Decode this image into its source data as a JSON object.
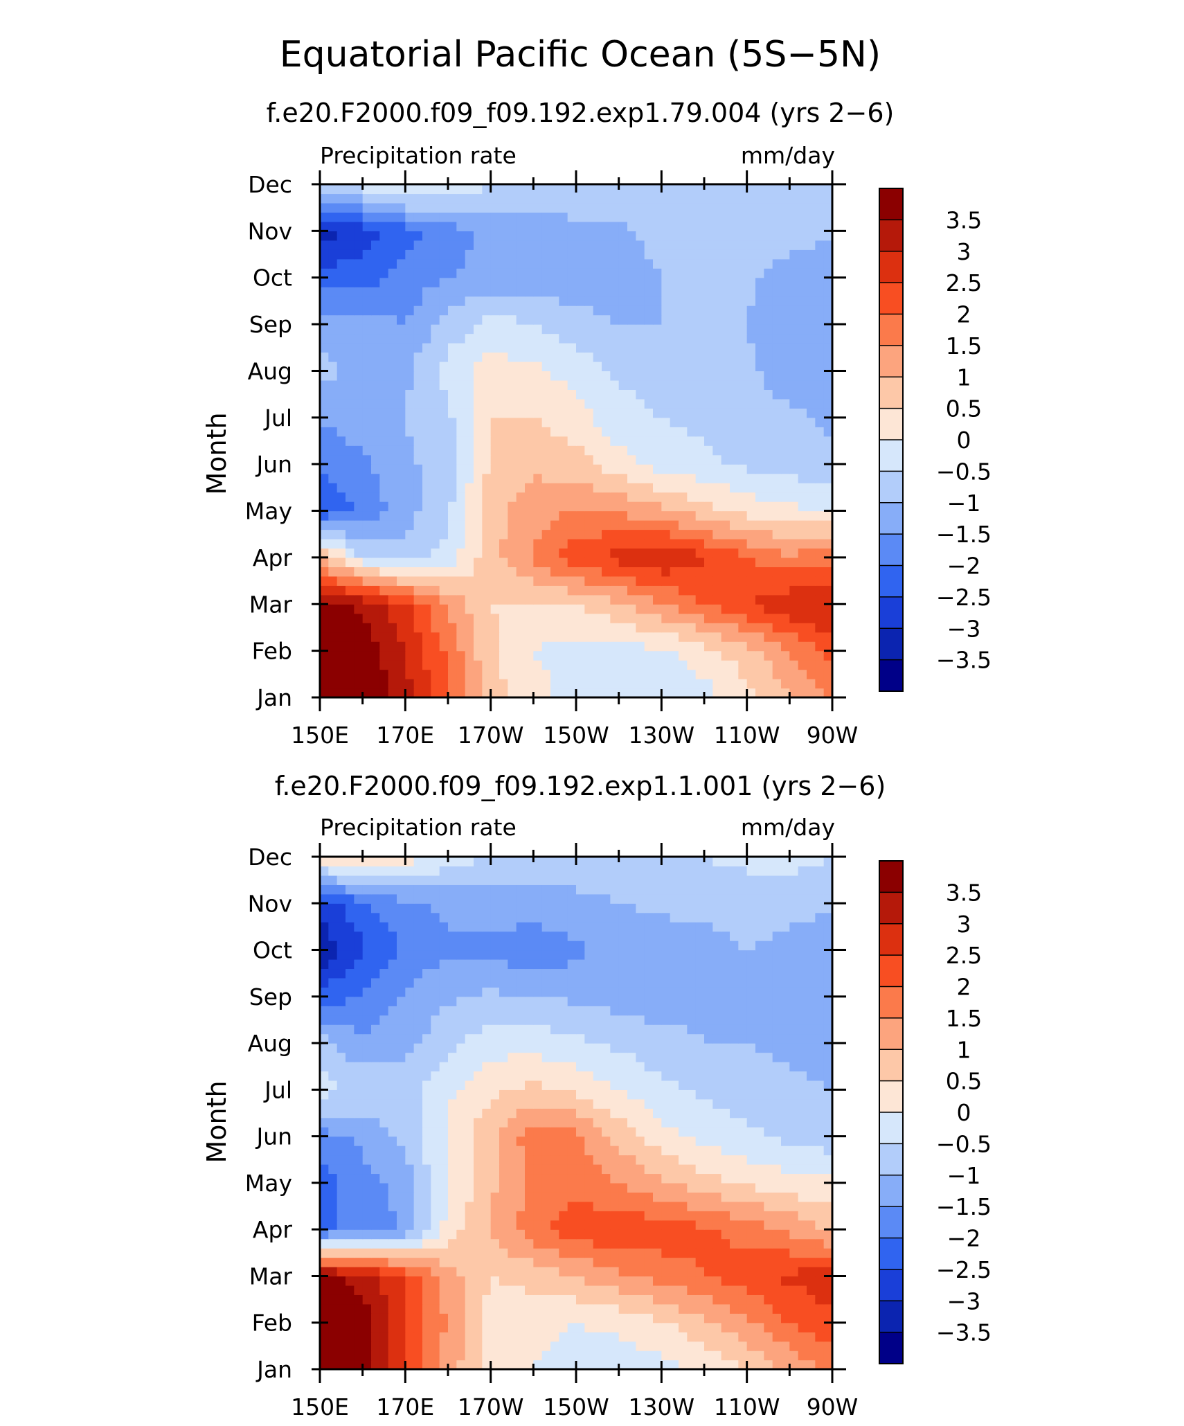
{
  "title": "Equatorial Pacific Ocean (5S−5N)",
  "chart_data": [
    {
      "type": "heatmap",
      "subtitle": "f.e20.F2000.f09_f09.192.exp1.79.004 (yrs 2−6)",
      "left_label": "Precipitation rate",
      "right_label": "mm/day",
      "ylabel": "Month",
      "x_ticks": [
        "150E",
        "170E",
        "170W",
        "150W",
        "130W",
        "110W",
        "90W"
      ],
      "y_ticks": [
        "Jan",
        "Feb",
        "Mar",
        "Apr",
        "May",
        "Jun",
        "Jul",
        "Aug",
        "Sep",
        "Oct",
        "Nov",
        "Dec"
      ],
      "xlim": [
        150,
        270
      ],
      "x_values": [
        150,
        160,
        170,
        180,
        190,
        200,
        210,
        220,
        230,
        240,
        250,
        260,
        270
      ],
      "z": [
        [
          4.0,
          4.0,
          3.2,
          2.0,
          0.7,
          0.2,
          -0.2,
          -0.3,
          -0.3,
          -0.2,
          0.3,
          0.9,
          1.6
        ],
        [
          4.0,
          3.8,
          3.0,
          1.9,
          0.6,
          0.0,
          -0.2,
          -0.2,
          -0.1,
          0.3,
          0.8,
          1.5,
          2.2
        ],
        [
          3.6,
          3.4,
          2.6,
          1.4,
          0.5,
          0.4,
          0.5,
          0.9,
          1.4,
          2.0,
          2.5,
          2.9,
          3.1
        ],
        [
          1.0,
          -0.5,
          -0.8,
          -0.3,
          0.8,
          1.6,
          2.3,
          2.7,
          3.0,
          2.6,
          2.0,
          1.6,
          1.8
        ],
        [
          -2.4,
          -1.9,
          -1.2,
          -0.6,
          0.8,
          1.3,
          1.5,
          1.4,
          1.1,
          0.7,
          0.3,
          0.1,
          0.0
        ],
        [
          -2.0,
          -1.6,
          -1.1,
          -0.8,
          0.6,
          0.9,
          0.7,
          0.2,
          -0.2,
          -0.4,
          -0.6,
          -0.7,
          -0.9
        ],
        [
          -1.4,
          -1.2,
          -1.0,
          -0.6,
          0.5,
          0.5,
          0.2,
          -0.3,
          -0.5,
          -0.6,
          -0.7,
          -0.9,
          -1.1
        ],
        [
          -0.8,
          -1.2,
          -1.1,
          -0.3,
          0.2,
          0.1,
          -0.2,
          -0.6,
          -0.7,
          -0.8,
          -0.9,
          -1.3,
          -1.4
        ],
        [
          -1.2,
          -1.3,
          -1.5,
          -0.8,
          -0.3,
          -0.5,
          -0.8,
          -1.0,
          -1.0,
          -0.9,
          -1.0,
          -1.4,
          -1.5
        ],
        [
          -2.2,
          -2.3,
          -1.8,
          -1.5,
          -1.4,
          -1.3,
          -1.3,
          -1.3,
          -1.0,
          -0.9,
          -0.9,
          -1.2,
          -1.4
        ],
        [
          -3.3,
          -2.8,
          -2.2,
          -1.7,
          -1.4,
          -1.2,
          -1.1,
          -1.1,
          -0.8,
          -0.7,
          -0.7,
          -0.8,
          -0.9
        ],
        [
          -0.6,
          -0.3,
          0.2,
          -0.1,
          -0.5,
          -0.7,
          -0.7,
          -0.6,
          -0.6,
          -0.6,
          -0.6,
          -0.6,
          -0.7
        ]
      ]
    },
    {
      "type": "heatmap",
      "subtitle": "f.e20.F2000.f09_f09.192.exp1.1.001 (yrs 2−6)",
      "left_label": "Precipitation rate",
      "right_label": "mm/day",
      "ylabel": "Month",
      "x_ticks": [
        "150E",
        "170E",
        "170W",
        "150W",
        "130W",
        "110W",
        "90W"
      ],
      "y_ticks": [
        "Jan",
        "Feb",
        "Mar",
        "Apr",
        "May",
        "Jun",
        "Jul",
        "Aug",
        "Sep",
        "Oct",
        "Nov",
        "Dec"
      ],
      "xlim": [
        150,
        270
      ],
      "x_values": [
        150,
        160,
        170,
        180,
        190,
        200,
        210,
        220,
        230,
        240,
        250,
        260,
        270
      ],
      "z": [
        [
          4.0,
          3.6,
          2.4,
          1.3,
          0.2,
          0.0,
          -0.2,
          -0.3,
          -0.2,
          0.1,
          0.5,
          1.1,
          1.6
        ],
        [
          4.0,
          3.8,
          2.6,
          1.4,
          0.3,
          0.1,
          0.0,
          0.1,
          0.4,
          0.9,
          1.4,
          2.0,
          2.4
        ],
        [
          3.7,
          3.3,
          2.4,
          1.3,
          0.5,
          0.7,
          1.0,
          1.4,
          1.7,
          2.0,
          2.3,
          2.6,
          2.8
        ],
        [
          -2.1,
          -1.9,
          -1.4,
          0.2,
          1.0,
          1.8,
          2.3,
          2.4,
          2.3,
          2.1,
          1.8,
          1.4,
          0.9
        ],
        [
          -2.2,
          -1.7,
          -1.3,
          0.0,
          0.9,
          1.6,
          1.8,
          1.5,
          1.1,
          0.7,
          0.4,
          0.2,
          0.1
        ],
        [
          -1.7,
          -1.4,
          -0.8,
          0.1,
          0.9,
          1.8,
          1.6,
          0.8,
          0.2,
          -0.2,
          -0.4,
          -0.6,
          -0.8
        ],
        [
          -0.3,
          -0.6,
          -0.7,
          -0.1,
          0.4,
          0.6,
          0.4,
          0.0,
          -0.4,
          -0.6,
          -0.7,
          -0.8,
          -1.0
        ],
        [
          -0.8,
          -1.4,
          -1.2,
          -0.6,
          -0.2,
          -0.2,
          -0.4,
          -0.6,
          -0.8,
          -1.0,
          -1.0,
          -1.2,
          -1.4
        ],
        [
          -2.3,
          -1.9,
          -1.4,
          -1.1,
          -0.9,
          -1.0,
          -1.1,
          -1.2,
          -1.3,
          -1.1,
          -1.0,
          -1.3,
          -1.4
        ],
        [
          -3.4,
          -2.6,
          -1.9,
          -1.6,
          -1.6,
          -1.9,
          -1.6,
          -1.4,
          -1.3,
          -1.3,
          -1.0,
          -1.2,
          -1.4
        ],
        [
          -2.8,
          -2.1,
          -1.6,
          -1.4,
          -1.3,
          -1.2,
          -1.1,
          -1.0,
          -0.9,
          -0.8,
          -0.7,
          -0.8,
          -0.9
        ],
        [
          0.4,
          0.5,
          0.3,
          -0.2,
          -0.6,
          -0.8,
          -0.8,
          -0.7,
          -0.6,
          -0.5,
          -0.4,
          -0.3,
          -0.5
        ]
      ]
    }
  ],
  "colorbar": {
    "labels": [
      "3.5",
      "3",
      "2.5",
      "2",
      "1.5",
      "1",
      "0.5",
      "0",
      "−0.5",
      "−1",
      "−1.5",
      "−2",
      "−2.5",
      "−3",
      "−3.5"
    ],
    "levels": [
      3.5,
      3.0,
      2.5,
      2.0,
      1.5,
      1.0,
      0.5,
      0.0,
      -0.5,
      -1.0,
      -1.5,
      -2.0,
      -2.5,
      -3.0,
      -3.5
    ],
    "colors": [
      "#8b0000",
      "#b5190a",
      "#dc3010",
      "#f84e22",
      "#fb7a4b",
      "#fca47e",
      "#fdc8a8",
      "#fde6d6",
      "#d6e7fb",
      "#b2cdfa",
      "#87adf8",
      "#5b8af5",
      "#3064f0",
      "#1a3fd8",
      "#0b24b0",
      "#000088"
    ]
  }
}
